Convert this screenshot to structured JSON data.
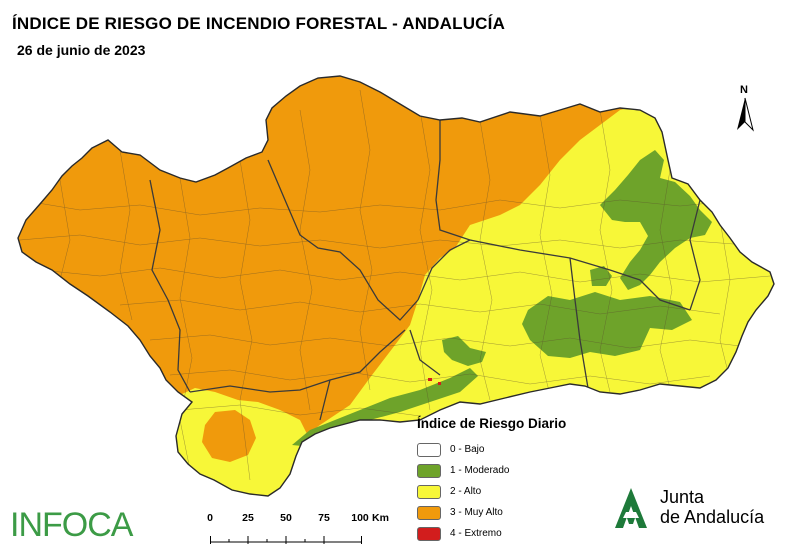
{
  "title": "ÍNDICE DE RIESGO DE INCENDIO FORESTAL - ANDALUCÍA",
  "subtitle": "26 de junio de 2023",
  "north_label": "N",
  "legend": {
    "title": "Índice de Riesgo Diario",
    "items": [
      {
        "label": "0 - Bajo",
        "color": "#ffffff"
      },
      {
        "label": "1 - Moderado",
        "color": "#6ea32a"
      },
      {
        "label": "2 - Alto",
        "color": "#f7f738"
      },
      {
        "label": "3 - Muy Alto",
        "color": "#f09a0c"
      },
      {
        "label": "4 - Extremo",
        "color": "#d21d1d"
      }
    ]
  },
  "scale": {
    "ticks": [
      "0",
      "25",
      "50",
      "75",
      "100"
    ],
    "unit": "Km"
  },
  "logos": {
    "infoca": "INFOCA",
    "junta_line1": "Junta",
    "junta_line2": "de Andalucía",
    "junta_color": "#1e7a3a"
  },
  "colors": {
    "muy_alto": "#f09a0c",
    "alto": "#f7f738",
    "moderado": "#6ea32a",
    "border": "#3a3a3a"
  }
}
